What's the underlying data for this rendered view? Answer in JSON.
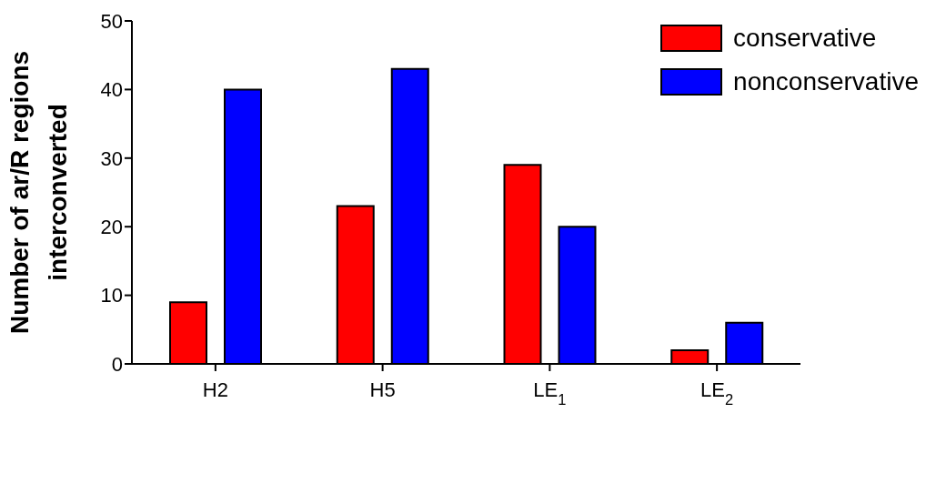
{
  "chart_data": {
    "type": "bar",
    "ylabel": "Number of ar/R regions\ninterconverted",
    "categories": [
      "H2",
      "H5",
      "LE$_{1}$",
      "LE$_{2}$"
    ],
    "series": [
      {
        "name": "conservative",
        "color": "#ff0000",
        "values": [
          9,
          23,
          29,
          2
        ]
      },
      {
        "name": "nonconservative",
        "color": "#0000ff",
        "values": [
          40,
          43,
          20,
          6
        ]
      }
    ],
    "ylim": [
      0,
      50
    ],
    "yticks": [
      0,
      10,
      20,
      30,
      40,
      50
    ],
    "grid": false,
    "legend": "top right"
  }
}
